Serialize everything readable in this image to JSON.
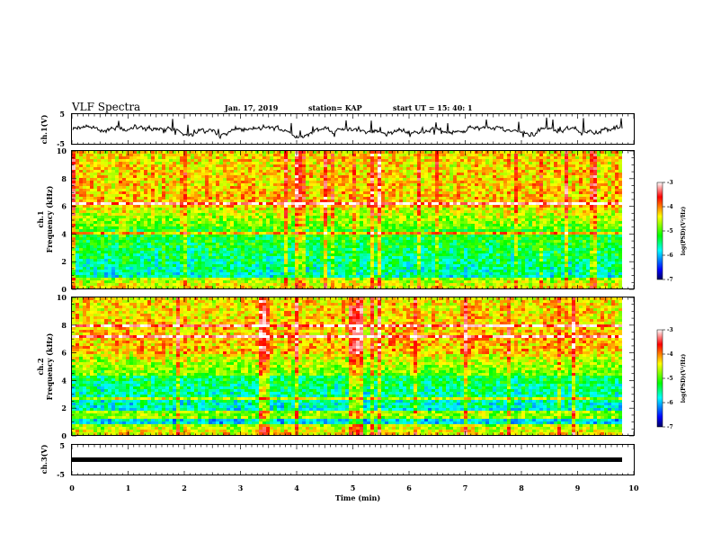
{
  "header": {
    "title": "VLF Spectra",
    "date": "Jan. 17, 2019",
    "station": "station= KAP",
    "start_ut": "start  UT =   15: 40: 1"
  },
  "chart_data": [
    {
      "type": "line",
      "name": "ch1-waveform",
      "ylabel": "ch.1(V)",
      "ylim": [
        -5,
        5
      ],
      "yticks": [
        "5",
        "-5"
      ],
      "xlim": [
        0,
        10
      ],
      "x_extent": [
        0,
        9.8
      ],
      "baseline": -0.2,
      "color": "#000000"
    },
    {
      "type": "heatmap",
      "name": "ch1-spectrogram",
      "ylabel": "ch.1\nFrequency  (kHz)",
      "ylim": [
        0,
        10
      ],
      "yticks": [
        "0",
        "2",
        "4",
        "6",
        "8",
        "10"
      ],
      "xlim": [
        0,
        10
      ],
      "x_extent": [
        0,
        9.8
      ],
      "colorbar": {
        "label": "log(PSD)(V²/Hz)",
        "range": [
          -7,
          -3
        ],
        "ticks": [
          "-3",
          "-4",
          "-5",
          "-6",
          "-7"
        ]
      }
    },
    {
      "type": "heatmap",
      "name": "ch2-spectrogram",
      "ylabel": "ch.2\nFrequency  (kHz)",
      "ylim": [
        0,
        10
      ],
      "yticks": [
        "0",
        "2",
        "4",
        "6",
        "8",
        "10"
      ],
      "xlim": [
        0,
        10
      ],
      "x_extent": [
        0,
        9.8
      ],
      "colorbar": {
        "label": "log(PSD)(V²/Hz)",
        "range": [
          -7,
          -3
        ],
        "ticks": [
          "-3",
          "-4",
          "-5",
          "-6",
          "-7"
        ]
      }
    },
    {
      "type": "line",
      "name": "ch3-waveform",
      "ylabel": "ch.3(V)",
      "ylim": [
        -5,
        5
      ],
      "yticks": [
        "5",
        "-5"
      ],
      "xlim": [
        0,
        10
      ],
      "x_extent": [
        0,
        9.8
      ],
      "baseline": 0,
      "color": "#000000"
    }
  ],
  "x_axis": {
    "label": "Time  (min)",
    "ticks": [
      "0",
      "1",
      "2",
      "3",
      "4",
      "5",
      "6",
      "7",
      "8",
      "9",
      "10"
    ]
  }
}
